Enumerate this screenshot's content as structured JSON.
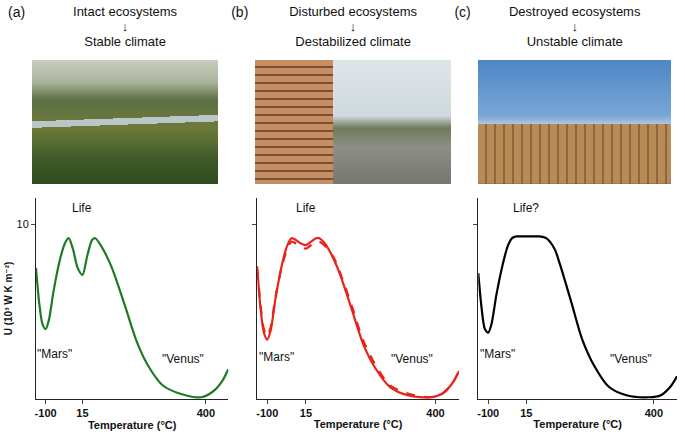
{
  "header": {
    "panels": [
      {
        "label": "(a)",
        "lines": [
          "Intact ecosystems",
          "↓",
          "Stable climate"
        ]
      },
      {
        "label": "(b)",
        "lines": [
          "Disturbed ecosystems",
          "↓",
          "Destabilized climate"
        ]
      },
      {
        "label": "(c)",
        "lines": [
          "Destroyed ecosystems",
          "↓",
          "Unstable climate"
        ]
      }
    ]
  },
  "chart_data": [
    {
      "type": "line",
      "xlabel": "Temperature (°C)",
      "ylabel": "U (10³ W K m⁻²)",
      "x": [
        -130,
        -120,
        -110,
        -100,
        -90,
        -75,
        -55,
        -40,
        -28,
        -15,
        0,
        15,
        30,
        45,
        55,
        75,
        100,
        115,
        150,
        184,
        220,
        264,
        320,
        385,
        420,
        450,
        470
      ],
      "values": [
        7.5,
        5.5,
        4.3,
        4.0,
        4.5,
        6.2,
        8.0,
        8.9,
        9.2,
        8.6,
        7.5,
        7.1,
        8.2,
        9.1,
        9.2,
        8.7,
        7.8,
        7.1,
        5.2,
        3.3,
        1.9,
        0.8,
        0.3,
        0.1,
        0.4,
        1.0,
        1.7
      ],
      "color": "#1e7a26",
      "xlim": [
        -130,
        470
      ],
      "xticks": [
        -100,
        15,
        400
      ],
      "ylim": [
        0,
        11.5
      ],
      "yticks": [
        10
      ],
      "grid": false,
      "annotations": [
        {
          "text": "Life",
          "x": 15,
          "y": 10.9
        },
        {
          "text": "\"Mars\"",
          "x": -72,
          "y": 2.6
        },
        {
          "text": "\"Venus\"",
          "x": 330,
          "y": 2.3
        }
      ]
    },
    {
      "type": "line",
      "xlabel": "Temperature (°C)",
      "tick_labels": "x",
      "x": [
        -130,
        -120,
        -110,
        -100,
        -90,
        -75,
        -55,
        -40,
        -28,
        -15,
        0,
        15,
        30,
        45,
        55,
        75,
        100,
        115,
        150,
        184,
        220,
        264,
        320,
        385,
        420,
        450,
        470
      ],
      "series": [
        {
          "color": "#e8231b",
          "line_style": "solid",
          "values": [
            7.6,
            5.2,
            3.8,
            3.4,
            3.9,
            5.8,
            7.8,
            8.8,
            9.2,
            9.1,
            8.9,
            8.8,
            9.0,
            9.2,
            9.2,
            8.8,
            7.9,
            7.2,
            5.2,
            3.2,
            1.8,
            0.7,
            0.2,
            0.1,
            0.3,
            0.9,
            1.6
          ]
        },
        {
          "color": "#e8231b",
          "line_style": "dashed",
          "values": [
            7.4,
            5.4,
            4.0,
            3.6,
            4.1,
            5.9,
            7.7,
            8.6,
            9.0,
            8.9,
            8.7,
            8.6,
            8.8,
            9.0,
            9.0,
            8.7,
            8.0,
            7.3,
            5.4,
            3.4,
            2.0,
            0.8,
            0.3,
            0.1,
            0.3,
            0.9,
            1.6
          ]
        }
      ],
      "xlim": [
        -130,
        470
      ],
      "xticks": [
        -100,
        15,
        400
      ],
      "ylim": [
        0,
        11.5
      ],
      "yticks": [
        10
      ],
      "grid": false,
      "annotations": [
        {
          "text": "Life",
          "x": 15,
          "y": 10.9
        },
        {
          "text": "\"Mars\"",
          "x": -72,
          "y": 2.4
        },
        {
          "text": "\"Venus\"",
          "x": 330,
          "y": 2.3
        }
      ]
    },
    {
      "type": "line",
      "xlabel": "Temperature (°C)",
      "tick_labels": "x",
      "x": [
        -130,
        -120,
        -110,
        -100,
        -90,
        -75,
        -55,
        -40,
        -28,
        -15,
        0,
        15,
        30,
        45,
        55,
        75,
        100,
        115,
        150,
        184,
        220,
        264,
        320,
        385,
        420,
        450,
        470
      ],
      "values": [
        7.2,
        5.2,
        4.0,
        3.8,
        4.3,
        6.0,
        7.8,
        8.8,
        9.2,
        9.3,
        9.3,
        9.3,
        9.3,
        9.3,
        9.3,
        9.2,
        8.6,
        7.8,
        5.6,
        3.4,
        1.9,
        0.7,
        0.2,
        0.1,
        0.2,
        0.7,
        1.3
      ],
      "color": "#000000",
      "xlim": [
        -130,
        470
      ],
      "xticks": [
        -100,
        15,
        400
      ],
      "ylim": [
        0,
        11.5
      ],
      "yticks": [
        10
      ],
      "grid": false,
      "annotations": [
        {
          "text": "Life?",
          "x": 15,
          "y": 10.9
        },
        {
          "text": "\"Mars\"",
          "x": -72,
          "y": 2.6
        },
        {
          "text": "\"Venus\"",
          "x": 330,
          "y": 2.3
        }
      ]
    }
  ]
}
